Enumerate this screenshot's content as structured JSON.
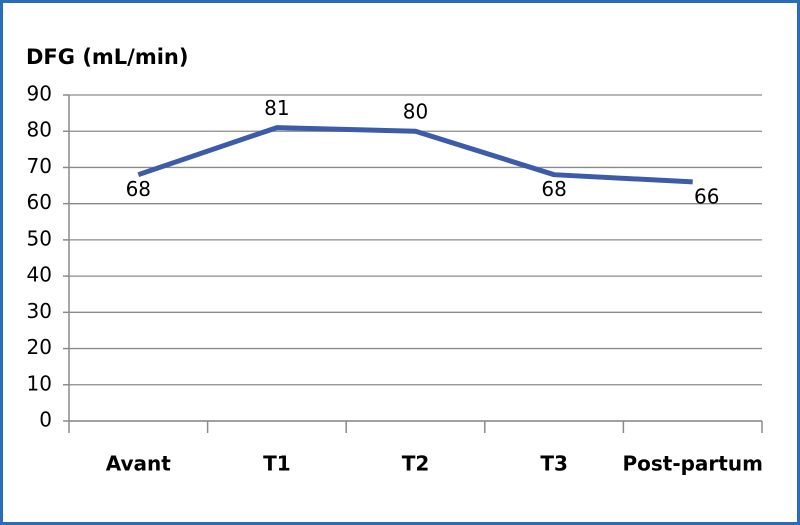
{
  "chart_data": {
    "type": "line",
    "title": "DFG (mL/min)",
    "categories": [
      "Avant",
      "T1",
      "T2",
      "T3",
      "Post-partum"
    ],
    "series": [
      {
        "name": "DFG",
        "color": "#3c5ba8",
        "values": [
          68,
          81,
          80,
          68,
          66
        ]
      }
    ],
    "ylim": [
      0,
      90
    ],
    "yticks": [
      0,
      10,
      20,
      30,
      40,
      50,
      60,
      70,
      80,
      90
    ],
    "grid": true
  }
}
